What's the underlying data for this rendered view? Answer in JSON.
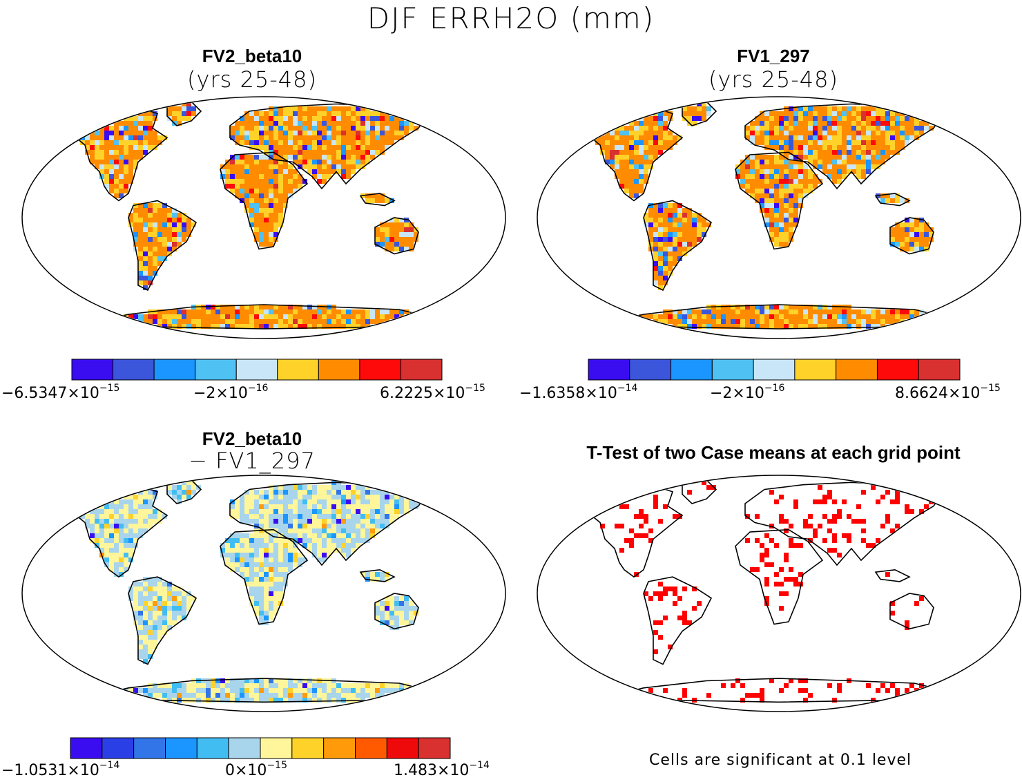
{
  "figure": {
    "title": "DJF ERRH2O (mm)",
    "sig_note": "Cells are significant at 0.1 level"
  },
  "chart_data": [
    {
      "type": "heatmap",
      "name": "FV2_beta10",
      "title": "FV2_beta10",
      "subtitle": "(yrs 25-48)",
      "projection": "Robinson",
      "colorbar": {
        "colors": [
          "#3a0df0",
          "#3b56db",
          "#1b95ff",
          "#4fc1f2",
          "#c8e6f8",
          "#ffd22a",
          "#ff8c00",
          "#ff0a0a",
          "#d93030"
        ],
        "labels": {
          "min": "−6.5347×10",
          "min_exp": "−15",
          "mid": "−2×10",
          "mid_exp": "−16",
          "max": "6.2225×10",
          "max_exp": "−15"
        }
      }
    },
    {
      "type": "heatmap",
      "name": "FV1_297",
      "title": "FV1_297",
      "subtitle": "(yrs 25-48)",
      "projection": "Robinson",
      "colorbar": {
        "colors": [
          "#3a0df0",
          "#3b56db",
          "#1b95ff",
          "#4fc1f2",
          "#c8e6f8",
          "#ffd22a",
          "#ff8c00",
          "#ff0a0a",
          "#d93030"
        ],
        "labels": {
          "min": "−1.6358×10",
          "min_exp": "−14",
          "mid": "−2×10",
          "mid_exp": "−16",
          "max": "8.6624×10",
          "max_exp": "−15"
        }
      }
    },
    {
      "type": "heatmap",
      "name": "difference",
      "title": "FV2_beta10",
      "subtitle": "− FV1_297",
      "projection": "Robinson",
      "colorbar": {
        "colors": [
          "#3a0df0",
          "#2a3fe6",
          "#3175e8",
          "#1b95ff",
          "#42bdf2",
          "#a8d5ec",
          "#fff59a",
          "#ffd22a",
          "#ff9b0a",
          "#ff5a00",
          "#ee0a0a",
          "#d93030"
        ],
        "labels": {
          "min": "−1.0531×10",
          "min_exp": "−14",
          "mid": "0×10",
          "mid_exp": "−15",
          "max": "1.483×10",
          "max_exp": "−14"
        }
      }
    },
    {
      "type": "heatmap",
      "name": "ttest",
      "title": "T-Test of two Case means at each grid point",
      "projection": "Robinson",
      "significance_level": 0.1
    }
  ]
}
